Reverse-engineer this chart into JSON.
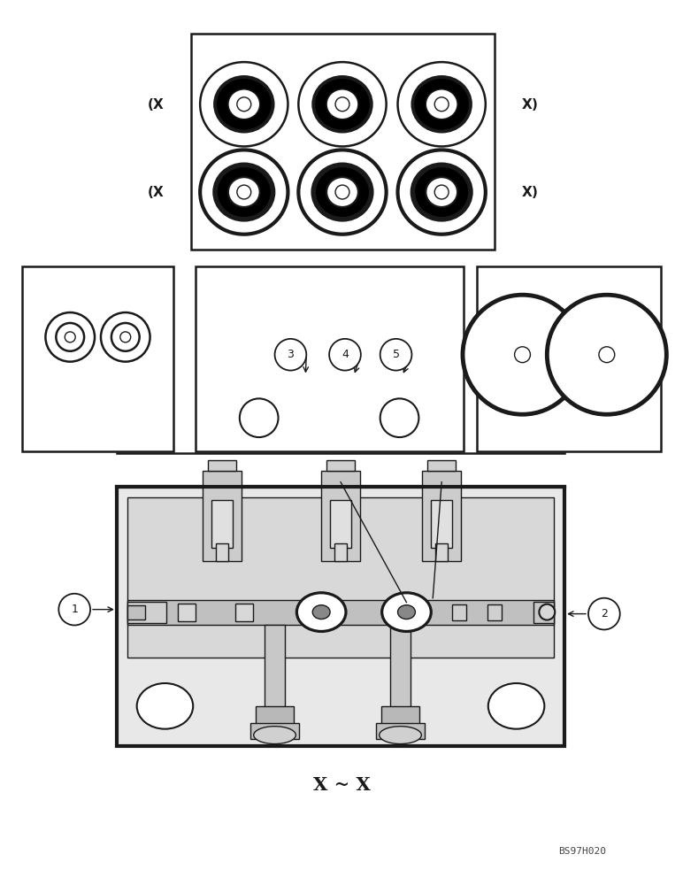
{
  "bg_color": "#ffffff",
  "line_color": "#1a1a1a",
  "title_bottom": "X ~ X",
  "watermark": "BS97H020",
  "fig_w": 7.72,
  "fig_h": 10.0
}
